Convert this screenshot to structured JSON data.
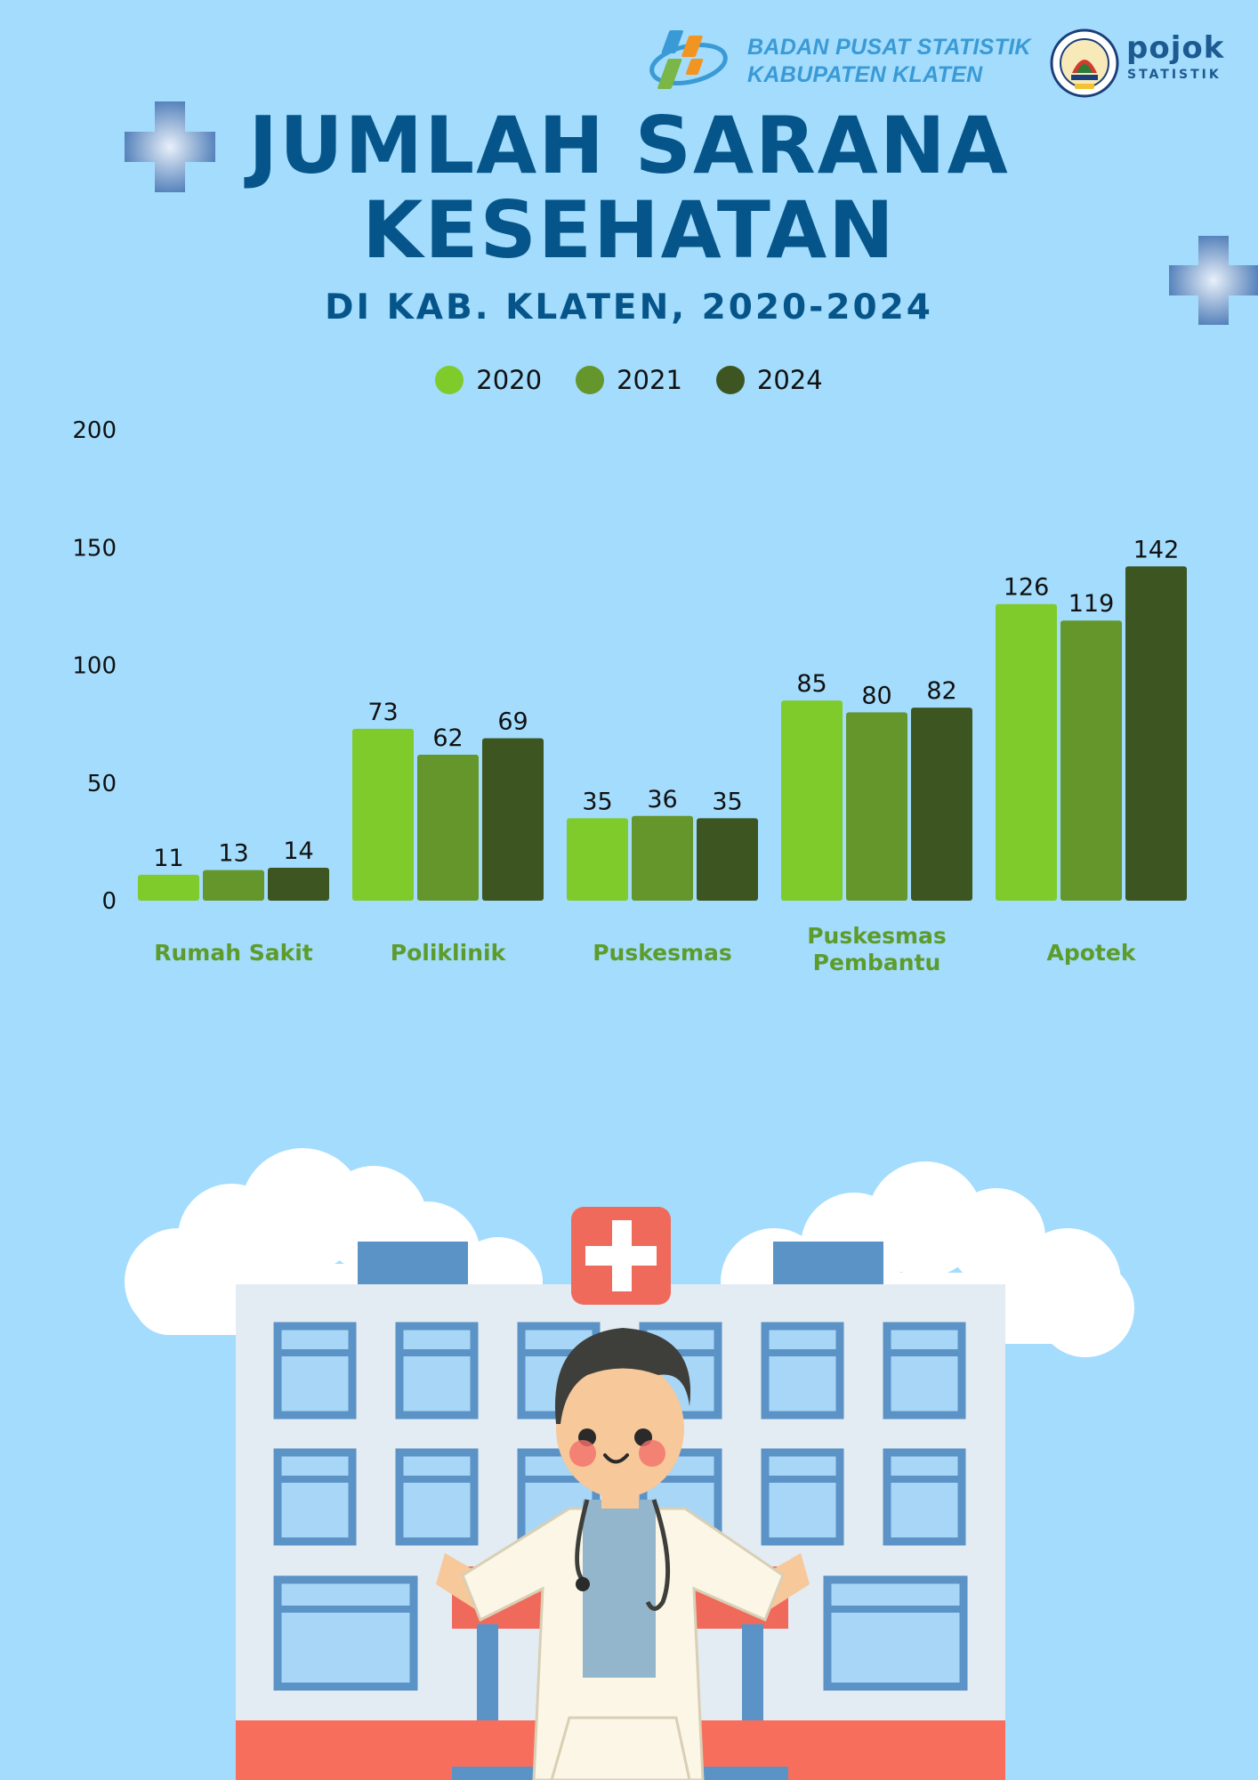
{
  "header": {
    "org_line1": "BADAN PUSAT STATISTIK",
    "org_line2": "KABUPATEN KLATEN",
    "pojok_word": "pojok",
    "pojok_sub": "STATISTIK",
    "bps_logo_icon": "bps-logo-icon",
    "university_seal": "university-seal-icon"
  },
  "colors": {
    "background": "#a3dcfc",
    "title": "#06558a",
    "category_label": "#5d9c2c"
  },
  "chart_data": {
    "type": "bar",
    "title_line1": "JUMLAH SARANA",
    "title_line2": "KESEHATAN",
    "subtitle": "DI KAB. KLATEN,  2020-2024",
    "categories": [
      [
        "Rumah Sakit"
      ],
      [
        "Poliklinik"
      ],
      [
        "Puskesmas"
      ],
      [
        "Puskesmas",
        "Pembantu"
      ],
      [
        "Apotek"
      ]
    ],
    "series": [
      {
        "name": "2020",
        "color": "#7ecb2b",
        "values": [
          11,
          73,
          35,
          85,
          126
        ]
      },
      {
        "name": "2021",
        "color": "#65962c",
        "values": [
          13,
          62,
          36,
          80,
          119
        ]
      },
      {
        "name": "2024",
        "color": "#3d5520",
        "values": [
          14,
          69,
          35,
          82,
          142
        ]
      }
    ],
    "yticks": [
      0,
      50,
      100,
      150,
      200
    ],
    "ylim": [
      0,
      200
    ],
    "grid": false,
    "legend_position": "top-center"
  },
  "illustration": {
    "description_icon": "hospital-doctor-illustration",
    "cross_icon": "medical-cross-icon"
  }
}
